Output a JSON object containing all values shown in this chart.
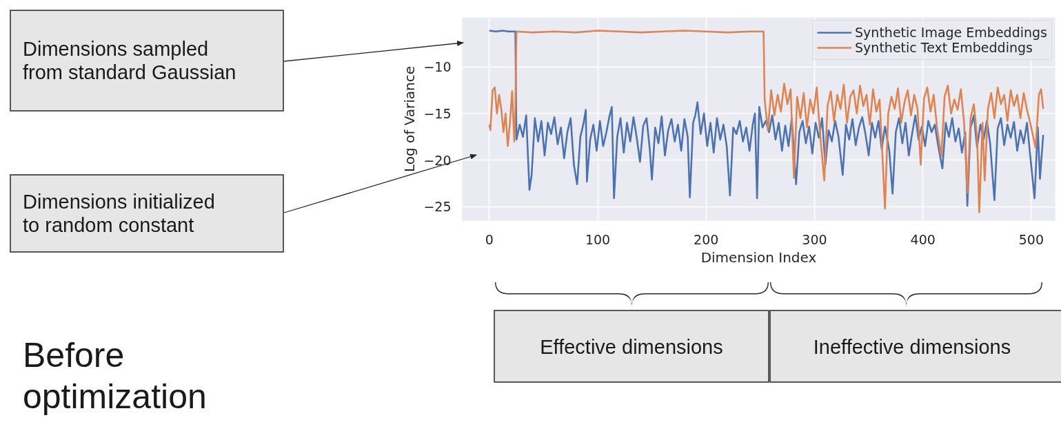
{
  "chart_data": {
    "type": "line",
    "xlabel": "Dimension Index",
    "ylabel": "Log of Variance",
    "xlim": [
      -25,
      522
    ],
    "ylim": [
      -26.5,
      -4.7
    ],
    "xticks": [
      0,
      100,
      200,
      300,
      400,
      500
    ],
    "yticks": [
      -25,
      -20,
      -15,
      -10
    ],
    "grid": true,
    "legend": "top right",
    "series": [
      {
        "name": "Synthetic Image Embeddings",
        "color": "#4c72b0",
        "x": [
          0,
          6,
          12,
          18,
          24,
          25,
          28,
          31,
          34,
          37,
          39,
          42,
          45,
          48,
          51,
          54,
          57,
          60,
          63,
          66,
          69,
          72,
          75,
          78,
          81,
          84,
          87,
          89,
          90,
          93,
          96,
          99,
          102,
          105,
          108,
          111,
          113,
          115,
          118,
          121,
          124,
          127,
          130,
          133,
          136,
          139,
          142,
          145,
          148,
          150,
          153,
          156,
          159,
          162,
          165,
          168,
          171,
          174,
          177,
          180,
          183,
          185,
          188,
          190,
          192,
          195,
          198,
          201,
          204,
          207,
          210,
          213,
          216,
          219,
          222,
          225,
          228,
          231,
          234,
          237,
          240,
          243,
          245,
          247,
          249,
          252,
          255,
          258,
          261,
          264,
          267,
          270,
          273,
          276,
          279,
          283,
          286,
          289,
          292,
          295,
          298,
          301,
          304,
          307,
          310,
          313,
          316,
          319,
          322,
          326,
          329,
          332,
          335,
          338,
          341,
          344,
          347,
          350,
          353,
          356,
          359,
          362,
          365,
          369,
          372,
          375,
          378,
          381,
          384,
          387,
          390,
          393,
          396,
          399,
          402,
          405,
          408,
          411,
          414,
          418,
          421,
          424,
          427,
          430,
          433,
          436,
          439,
          441,
          444,
          447,
          450,
          453,
          456,
          459,
          462,
          466,
          469,
          472,
          475,
          478,
          481,
          484,
          487,
          490,
          493,
          496,
          499,
          503,
          506,
          508,
          511
        ],
        "values": [
          -6.1,
          -6.2,
          -6.1,
          -6.2,
          -6.2,
          -17.8,
          -16.2,
          -17.5,
          -15.2,
          -23.2,
          -21.6,
          -15.5,
          -18.0,
          -15.8,
          -19.5,
          -16.0,
          -17.2,
          -15.4,
          -18.3,
          -16.5,
          -19.8,
          -17.0,
          -15.5,
          -20.5,
          -22.6,
          -17.5,
          -16.0,
          -14.6,
          -22.3,
          -17.8,
          -16.2,
          -19.0,
          -15.8,
          -18.5,
          -17.0,
          -15.2,
          -14.3,
          -24.1,
          -17.5,
          -15.5,
          -19.2,
          -16.0,
          -18.0,
          -15.4,
          -17.6,
          -20.2,
          -16.3,
          -15.5,
          -18.8,
          -22.1,
          -16.5,
          -18.2,
          -15.3,
          -19.5,
          -16.8,
          -15.6,
          -18.0,
          -16.2,
          -19.0,
          -15.6,
          -17.5,
          -24.0,
          -16.0,
          -15.2,
          -13.8,
          -17.2,
          -15.0,
          -18.5,
          -16.0,
          -19.2,
          -15.5,
          -17.8,
          -16.2,
          -18.5,
          -23.8,
          -16.5,
          -17.2,
          -15.8,
          -18.0,
          -16.5,
          -19.0,
          -16.2,
          -15.0,
          -24.1,
          -14.3,
          -16.5,
          -15.8,
          -17.0,
          -15.2,
          -17.8,
          -16.0,
          -19.0,
          -16.3,
          -18.5,
          -15.5,
          -22.6,
          -17.0,
          -15.8,
          -18.2,
          -16.4,
          -19.3,
          -16.0,
          -17.6,
          -15.5,
          -20.5,
          -16.8,
          -18.0,
          -15.8,
          -17.4,
          -21.6,
          -16.2,
          -17.8,
          -15.6,
          -18.4,
          -16.5,
          -15.4,
          -17.2,
          -19.5,
          -16.0,
          -17.6,
          -15.8,
          -18.8,
          -16.4,
          -19.0,
          -23.6,
          -17.0,
          -15.5,
          -18.2,
          -16.0,
          -19.5,
          -17.2,
          -15.2,
          -17.8,
          -16.4,
          -18.5,
          -15.8,
          -17.0,
          -16.2,
          -18.4,
          -20.9,
          -16.0,
          -17.5,
          -15.5,
          -18.0,
          -16.6,
          -19.2,
          -17.0,
          -24.9,
          -16.5,
          -15.2,
          -18.6,
          -16.2,
          -17.8,
          -15.8,
          -18.2,
          -24.3,
          -16.6,
          -15.5,
          -18.4,
          -16.2,
          -17.6,
          -15.9,
          -19.0,
          -16.8,
          -18.2,
          -16.0,
          -19.5,
          -24.1,
          -16.5,
          -22.0,
          -17.3
        ]
      },
      {
        "name": "Synthetic Text Embeddings",
        "color": "#dd8452",
        "x": [
          0,
          1,
          3,
          5,
          7,
          9,
          11,
          13,
          15,
          17,
          19,
          21,
          23,
          24,
          25,
          40,
          60,
          80,
          100,
          120,
          140,
          160,
          180,
          200,
          220,
          240,
          253,
          254,
          257,
          260,
          263,
          266,
          269,
          272,
          275,
          278,
          281,
          284,
          287,
          290,
          293,
          296,
          299,
          302,
          305,
          309,
          312,
          315,
          318,
          321,
          324,
          327,
          330,
          333,
          336,
          339,
          342,
          345,
          348,
          351,
          354,
          357,
          360,
          362,
          365,
          368,
          371,
          374,
          377,
          380,
          383,
          386,
          389,
          392,
          395,
          398,
          401,
          404,
          407,
          410,
          413,
          417,
          420,
          423,
          426,
          429,
          432,
          435,
          438,
          441,
          444,
          447,
          450,
          452,
          455,
          457,
          460,
          463,
          466,
          469,
          472,
          475,
          478,
          481,
          484,
          487,
          490,
          493,
          496,
          499,
          504,
          507,
          509,
          511
        ],
        "values": [
          -16.2,
          -16.8,
          -12.5,
          -12.2,
          -15.0,
          -13.0,
          -14.5,
          -17.0,
          -15.0,
          -18.5,
          -16.0,
          -12.6,
          -18.0,
          -14.5,
          -6.2,
          -6.3,
          -6.2,
          -6.3,
          -6.1,
          -6.2,
          -6.3,
          -6.2,
          -6.1,
          -6.2,
          -6.3,
          -6.2,
          -6.2,
          -13.5,
          -16.8,
          -12.5,
          -15.2,
          -13.0,
          -14.8,
          -11.8,
          -14.0,
          -12.4,
          -21.9,
          -13.2,
          -15.5,
          -12.8,
          -16.5,
          -13.5,
          -15.0,
          -12.2,
          -17.0,
          -22.2,
          -14.2,
          -12.6,
          -15.8,
          -13.0,
          -14.5,
          -11.9,
          -16.0,
          -13.2,
          -12.5,
          -15.0,
          -12.0,
          -14.2,
          -13.0,
          -16.2,
          -12.4,
          -14.8,
          -13.5,
          -18.0,
          -25.2,
          -15.0,
          -13.2,
          -14.5,
          -12.3,
          -16.0,
          -13.8,
          -12.5,
          -15.2,
          -13.0,
          -14.5,
          -20.5,
          -13.4,
          -12.2,
          -14.8,
          -13.0,
          -16.5,
          -19.6,
          -13.2,
          -12.0,
          -15.0,
          -13.5,
          -14.6,
          -12.4,
          -16.0,
          -23.5,
          -15.5,
          -14.0,
          -17.5,
          -25.6,
          -16.0,
          -22.2,
          -14.5,
          -12.8,
          -15.5,
          -12.2,
          -14.0,
          -13.0,
          -15.8,
          -12.5,
          -14.2,
          -13.0,
          -15.5,
          -12.8,
          -14.6,
          -16.0,
          -18.7,
          -13.0,
          -12.4,
          -14.5
        ]
      }
    ],
    "annotations": [
      "Dimensions sampled\nfrom standard Gaussian",
      "Dimensions initialized\nto random constant",
      "Before\noptimization",
      "Effective dimensions",
      "Ineffective dimensions"
    ]
  }
}
